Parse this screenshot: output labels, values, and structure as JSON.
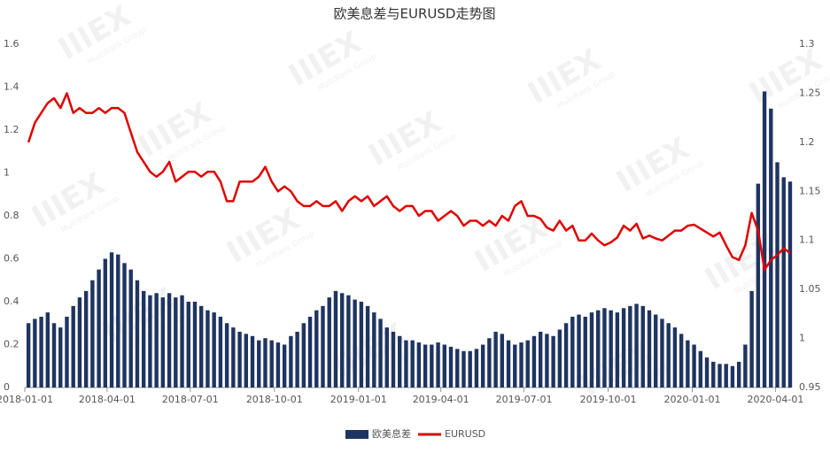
{
  "chart_data": {
    "type": "bar-line",
    "title": "欧美息差与EURUSD走势图",
    "watermark": "IIIEX",
    "watermark_sub": "MultiBank Group",
    "x": [
      "2018-01-05",
      "2018-01-12",
      "2018-01-19",
      "2018-01-26",
      "2018-02-02",
      "2018-02-09",
      "2018-02-16",
      "2018-02-23",
      "2018-03-02",
      "2018-03-09",
      "2018-03-16",
      "2018-03-23",
      "2018-03-30",
      "2018-04-06",
      "2018-04-13",
      "2018-04-20",
      "2018-04-27",
      "2018-05-04",
      "2018-05-11",
      "2018-05-18",
      "2018-05-25",
      "2018-06-01",
      "2018-06-08",
      "2018-06-15",
      "2018-06-22",
      "2018-06-29",
      "2018-07-06",
      "2018-07-13",
      "2018-07-20",
      "2018-07-27",
      "2018-08-03",
      "2018-08-10",
      "2018-08-17",
      "2018-08-24",
      "2018-08-31",
      "2018-09-07",
      "2018-09-14",
      "2018-09-21",
      "2018-09-28",
      "2018-10-05",
      "2018-10-12",
      "2018-10-19",
      "2018-10-26",
      "2018-11-02",
      "2018-11-09",
      "2018-11-16",
      "2018-11-23",
      "2018-11-30",
      "2018-12-07",
      "2018-12-14",
      "2018-12-21",
      "2018-12-28",
      "2019-01-04",
      "2019-01-11",
      "2019-01-18",
      "2019-01-25",
      "2019-02-01",
      "2019-02-08",
      "2019-02-15",
      "2019-02-22",
      "2019-03-01",
      "2019-03-08",
      "2019-03-15",
      "2019-03-22",
      "2019-03-29",
      "2019-04-05",
      "2019-04-12",
      "2019-04-19",
      "2019-04-26",
      "2019-05-03",
      "2019-05-10",
      "2019-05-17",
      "2019-05-24",
      "2019-05-31",
      "2019-06-07",
      "2019-06-14",
      "2019-06-21",
      "2019-06-28",
      "2019-07-05",
      "2019-07-12",
      "2019-07-19",
      "2019-07-26",
      "2019-08-02",
      "2019-08-09",
      "2019-08-16",
      "2019-08-23",
      "2019-08-30",
      "2019-09-06",
      "2019-09-13",
      "2019-09-20",
      "2019-09-27",
      "2019-10-04",
      "2019-10-11",
      "2019-10-18",
      "2019-10-25",
      "2019-11-01",
      "2019-11-08",
      "2019-11-15",
      "2019-11-22",
      "2019-11-29",
      "2019-12-06",
      "2019-12-13",
      "2019-12-20",
      "2019-12-27",
      "2020-01-03",
      "2020-01-10",
      "2020-01-17",
      "2020-01-24",
      "2020-01-31",
      "2020-02-07",
      "2020-02-14",
      "2020-02-21",
      "2020-02-28",
      "2020-03-06",
      "2020-03-13",
      "2020-03-20",
      "2020-03-27",
      "2020-04-03",
      "2020-04-10",
      "2020-04-17"
    ],
    "xlim": [
      "2018-01-01",
      "2020-04-18"
    ],
    "xticks": [
      "2018-01-01",
      "2018-04-01",
      "2018-07-01",
      "2018-10-01",
      "2019-01-01",
      "2019-04-01",
      "2019-07-01",
      "2019-10-01",
      "2020-01-01",
      "2020-04-01"
    ],
    "ylim": [
      0,
      1.6
    ],
    "yticks": [
      0,
      0.2,
      0.4,
      0.6,
      0.8,
      1,
      1.2,
      1.4,
      1.6
    ],
    "y2lim": [
      0.95,
      1.3
    ],
    "y2ticks": [
      0.95,
      1,
      1.05,
      1.1,
      1.15,
      1.2,
      1.25,
      1.3
    ],
    "legend": "bottom",
    "series": [
      {
        "name": "欧美息差",
        "type": "bar",
        "color": "#1f3461",
        "values": [
          0.3,
          0.32,
          0.33,
          0.35,
          0.3,
          0.28,
          0.33,
          0.38,
          0.42,
          0.45,
          0.5,
          0.55,
          0.6,
          0.63,
          0.62,
          0.58,
          0.55,
          0.5,
          0.45,
          0.43,
          0.44,
          0.42,
          0.44,
          0.42,
          0.43,
          0.4,
          0.4,
          0.38,
          0.36,
          0.35,
          0.33,
          0.3,
          0.28,
          0.26,
          0.25,
          0.24,
          0.22,
          0.23,
          0.22,
          0.21,
          0.2,
          0.24,
          0.26,
          0.3,
          0.33,
          0.36,
          0.38,
          0.42,
          0.45,
          0.44,
          0.43,
          0.41,
          0.4,
          0.38,
          0.35,
          0.32,
          0.28,
          0.26,
          0.24,
          0.22,
          0.22,
          0.21,
          0.2,
          0.2,
          0.21,
          0.2,
          0.19,
          0.18,
          0.17,
          0.17,
          0.18,
          0.2,
          0.23,
          0.26,
          0.25,
          0.22,
          0.2,
          0.21,
          0.22,
          0.24,
          0.26,
          0.25,
          0.24,
          0.27,
          0.3,
          0.33,
          0.34,
          0.33,
          0.35,
          0.36,
          0.37,
          0.36,
          0.35,
          0.37,
          0.38,
          0.39,
          0.38,
          0.36,
          0.34,
          0.32,
          0.3,
          0.28,
          0.25,
          0.22,
          0.2,
          0.17,
          0.14,
          0.12,
          0.11,
          0.11,
          0.1,
          0.12,
          0.2,
          0.45,
          0.95,
          1.38,
          1.3,
          1.05,
          0.98,
          0.96
        ]
      },
      {
        "name": "EURUSD",
        "type": "line",
        "axis": "y2",
        "color": "#e00000",
        "values": [
          1.2,
          1.22,
          1.23,
          1.24,
          1.245,
          1.235,
          1.25,
          1.23,
          1.235,
          1.23,
          1.23,
          1.235,
          1.23,
          1.235,
          1.235,
          1.23,
          1.21,
          1.19,
          1.18,
          1.17,
          1.165,
          1.17,
          1.18,
          1.16,
          1.165,
          1.17,
          1.17,
          1.165,
          1.17,
          1.17,
          1.16,
          1.14,
          1.14,
          1.16,
          1.16,
          1.16,
          1.165,
          1.175,
          1.16,
          1.15,
          1.155,
          1.15,
          1.14,
          1.135,
          1.135,
          1.14,
          1.135,
          1.135,
          1.14,
          1.13,
          1.14,
          1.145,
          1.14,
          1.145,
          1.135,
          1.14,
          1.145,
          1.135,
          1.13,
          1.135,
          1.135,
          1.125,
          1.13,
          1.13,
          1.12,
          1.125,
          1.13,
          1.125,
          1.115,
          1.12,
          1.12,
          1.115,
          1.12,
          1.115,
          1.125,
          1.12,
          1.135,
          1.14,
          1.125,
          1.125,
          1.122,
          1.113,
          1.11,
          1.12,
          1.11,
          1.115,
          1.1,
          1.1,
          1.107,
          1.1,
          1.095,
          1.098,
          1.103,
          1.115,
          1.11,
          1.117,
          1.102,
          1.105,
          1.102,
          1.1,
          1.105,
          1.11,
          1.11,
          1.115,
          1.116,
          1.112,
          1.108,
          1.104,
          1.108,
          1.095,
          1.083,
          1.08,
          1.095,
          1.128,
          1.11,
          1.07,
          1.08,
          1.085,
          1.092,
          1.087
        ]
      }
    ]
  }
}
